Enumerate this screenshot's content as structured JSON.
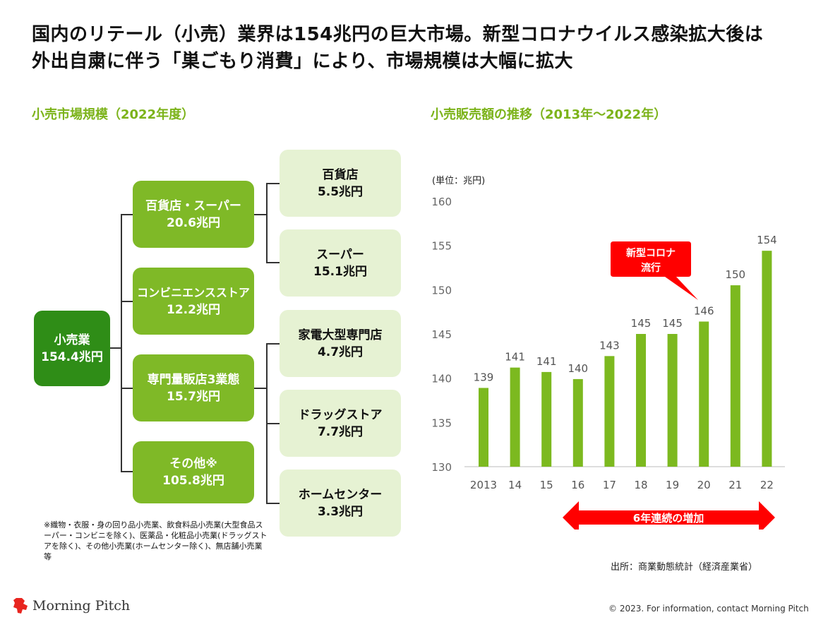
{
  "title_line1": "国内のリテール（小売）業界は154兆円の巨大市場。新型コロナウイルス感染拡大後は",
  "title_line2": "外出自粛に伴う「巣ごもり消費」により、市場規模は大幅に拡大",
  "left_section": "小売市場規模（2022年度）",
  "right_section": "小売販売額の推移（2013年～2022年）",
  "tree": {
    "root": {
      "name": "小売業",
      "value": "154.4兆円"
    },
    "level1": [
      {
        "name": "百貨店・スーパー",
        "value": "20.6兆円"
      },
      {
        "name": "コンビニエンスストア",
        "value": "12.2兆円"
      },
      {
        "name": "専門量販店3業態",
        "value": "15.7兆円"
      },
      {
        "name": "その他※",
        "value": "105.8兆円"
      }
    ],
    "level2": [
      {
        "name": "百貨店",
        "value": "5.5兆円"
      },
      {
        "name": "スーパー",
        "value": "15.1兆円"
      },
      {
        "name": "家電大型専門店",
        "value": "4.7兆円"
      },
      {
        "name": "ドラッグストア",
        "value": "7.7兆円"
      },
      {
        "name": "ホームセンター",
        "value": "3.3兆円"
      }
    ]
  },
  "footnote": "※織物・衣服・身の回り品小売業、飲食料品小売業(大型食品スーパー・コンビニを除く)、医薬品・化粧品小売業(ドラッグストアを除く)、その他小売業(ホームセンター除く)、無店舗小売業　等",
  "chart_data": {
    "type": "bar",
    "unit_label": "(単位：兆円)",
    "categories": [
      "2013",
      "14",
      "15",
      "16",
      "17",
      "18",
      "19",
      "20",
      "21",
      "22"
    ],
    "values": [
      138.9,
      141.2,
      140.7,
      139.9,
      142.5,
      145.0,
      145.0,
      146.4,
      150.5,
      154.4
    ],
    "data_labels": [
      "139",
      "141",
      "141",
      "140",
      "143",
      "145",
      "145",
      "146",
      "150",
      "154"
    ],
    "ylim": [
      130,
      160
    ],
    "yticks": [
      130,
      135,
      140,
      145,
      150,
      155,
      160
    ],
    "grid": false,
    "bar_color": "#7cb91f",
    "callout": "新型コロナ\n流行",
    "callout_color": "#ff0000",
    "arrow_label": "6年連続の増加"
  },
  "source": "出所：商業動態統計（経済産業省）",
  "copyright": "© 2023. For information, contact Morning Pitch",
  "logo_text": "Morning Pitch",
  "colors": {
    "dark_green": "#2f8d17",
    "mid_green": "#7fb927",
    "light_green": "#e6f2d3",
    "accent_red": "#ff0000"
  }
}
